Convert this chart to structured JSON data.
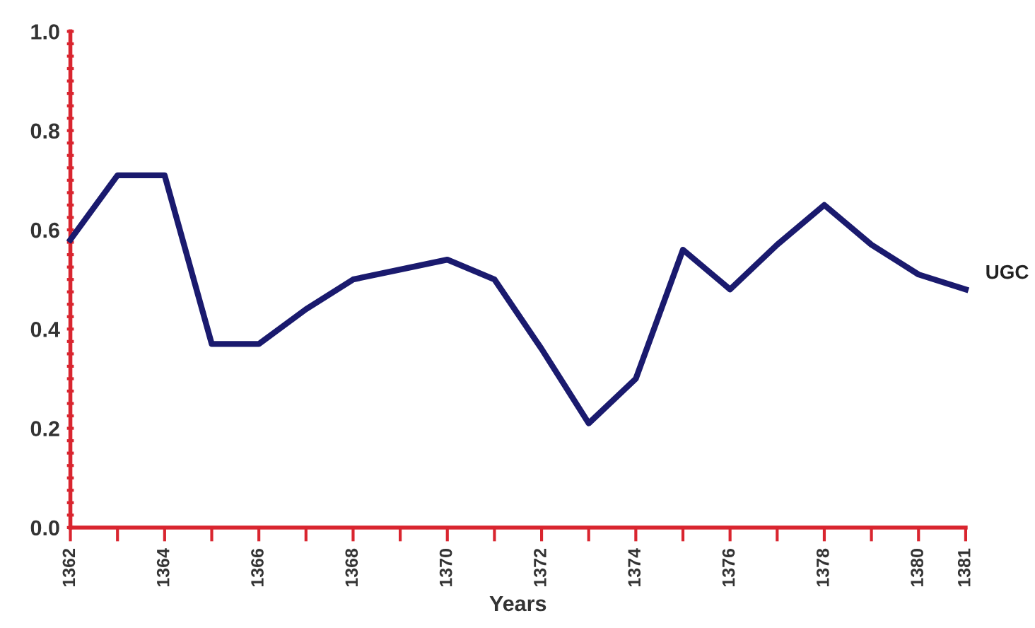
{
  "chart_data": {
    "type": "line",
    "xlabel": "Years",
    "x": [
      1362,
      1363,
      1364,
      1365,
      1366,
      1367,
      1368,
      1369,
      1370,
      1371,
      1372,
      1373,
      1374,
      1375,
      1376,
      1377,
      1378,
      1379,
      1380,
      1381
    ],
    "series": [
      {
        "name": "UGC",
        "color": "#1a1a6e",
        "values": [
          0.58,
          0.71,
          0.71,
          0.37,
          0.37,
          0.44,
          0.5,
          0.52,
          0.54,
          0.5,
          0.36,
          0.21,
          0.3,
          0.56,
          0.48,
          0.57,
          0.65,
          0.57,
          0.51,
          0.48
        ]
      }
    ],
    "xlim": [
      1362,
      1381
    ],
    "xticks": [
      1362,
      {
        "value": 1363,
        "label": null
      },
      1364,
      {
        "value": 1365,
        "label": null
      },
      1366,
      {
        "value": 1367,
        "label": null
      },
      1368,
      {
        "value": 1369,
        "label": null
      },
      1370,
      {
        "value": 1371,
        "label": null
      },
      1372,
      {
        "value": 1373,
        "label": null
      },
      1374,
      {
        "value": 1375,
        "label": null
      },
      1376,
      {
        "value": 1377,
        "label": null
      },
      1378,
      {
        "value": 1379,
        "label": null
      },
      1380,
      1381
    ],
    "ylim": [
      0,
      1.0
    ],
    "yticks": [
      {
        "value": 0,
        "label": "0.0"
      },
      {
        "value": 0.025,
        "label": null
      },
      {
        "value": 0.05,
        "label": null
      },
      {
        "value": 0.075,
        "label": null
      },
      {
        "value": 0.1,
        "label": null
      },
      {
        "value": 0.125,
        "label": null
      },
      {
        "value": 0.15,
        "label": null
      },
      {
        "value": 0.175,
        "label": null
      },
      {
        "value": 0.2,
        "label": "0.2"
      },
      {
        "value": 0.225,
        "label": null
      },
      {
        "value": 0.25,
        "label": null
      },
      {
        "value": 0.275,
        "label": null
      },
      {
        "value": 0.3,
        "label": null
      },
      {
        "value": 0.325,
        "label": null
      },
      {
        "value": 0.35,
        "label": null
      },
      {
        "value": 0.375,
        "label": null
      },
      {
        "value": 0.4,
        "label": "0.4"
      },
      {
        "value": 0.425,
        "label": null
      },
      {
        "value": 0.45,
        "label": null
      },
      {
        "value": 0.475,
        "label": null
      },
      {
        "value": 0.5,
        "label": null
      },
      {
        "value": 0.525,
        "label": null
      },
      {
        "value": 0.55,
        "label": null
      },
      {
        "value": 0.575,
        "label": null
      },
      {
        "value": 0.6,
        "label": "0.6"
      },
      {
        "value": 0.625,
        "label": null
      },
      {
        "value": 0.65,
        "label": null
      },
      {
        "value": 0.675,
        "label": null
      },
      {
        "value": 0.7,
        "label": null
      },
      {
        "value": 0.725,
        "label": null
      },
      {
        "value": 0.75,
        "label": null
      },
      {
        "value": 0.775,
        "label": null
      },
      {
        "value": 0.8,
        "label": "0.8"
      },
      {
        "value": 0.825,
        "label": null
      },
      {
        "value": 0.85,
        "label": null
      },
      {
        "value": 0.875,
        "label": null
      },
      {
        "value": 0.9,
        "label": null
      },
      {
        "value": 0.925,
        "label": null
      },
      {
        "value": 0.95,
        "label": null
      },
      {
        "value": 0.975,
        "label": null
      },
      {
        "value": 1.0,
        "label": "1.0"
      }
    ],
    "grid": false,
    "legend": false,
    "marker": "none",
    "line_style": "solid"
  }
}
